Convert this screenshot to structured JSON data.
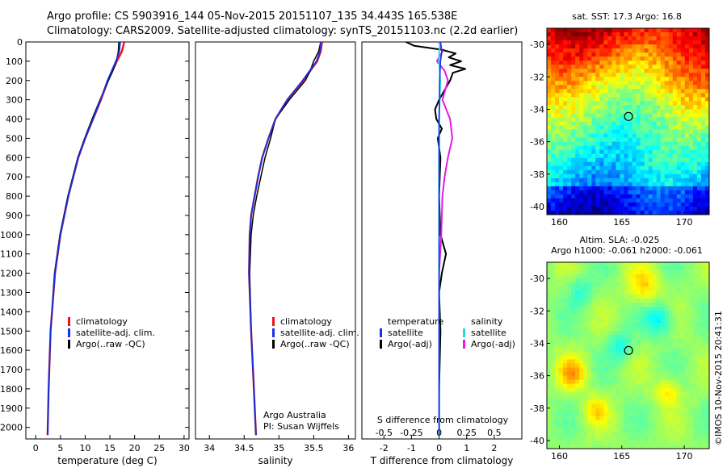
{
  "title_line1": "Argo profile: CS 5903916_144 05-Nov-2015 20151107_135 34.443S 165.538E",
  "title_line2": "Climatology: CARS2009. Satellite-adjusted climatology: synTS_20151103.nc (2.2d earlier)",
  "credit": "Argo Australia",
  "pi": "PI: Susan Wijffels",
  "stamp": "©IMOS 10-Nov-2015 20:41:31",
  "colors": {
    "climatology": "#e8141e",
    "satellite": "#1432e6",
    "argo": "#000000",
    "salinity_sat": "#19e0e0",
    "salinity_argo": "#e619e6"
  },
  "chart_data": [
    {
      "type": "line",
      "id": "temperature",
      "xlabel": "temperature (deg C)",
      "ylabel": "",
      "xlim": [
        -2,
        31
      ],
      "ylim": [
        2060,
        0
      ],
      "xticks": [
        "0",
        "5",
        "10",
        "15",
        "20",
        "25",
        "30"
      ],
      "yticks": [
        "0",
        "100",
        "200",
        "300",
        "400",
        "500",
        "600",
        "700",
        "800",
        "900",
        "1000",
        "1100",
        "1200",
        "1300",
        "1400",
        "1500",
        "1600",
        "1700",
        "1800",
        "1900",
        "2000"
      ],
      "legend": [
        "climatology",
        "satellite-adj. clim.",
        "Argo(..raw -QC)"
      ],
      "series": [
        {
          "name": "climatology",
          "depth": [
            0,
            50,
            100,
            200,
            300,
            400,
            500,
            600,
            800,
            1000,
            1200,
            1500,
            1800,
            2040
          ],
          "values": [
            17.9,
            17.4,
            16.4,
            14.6,
            13.2,
            11.6,
            10.0,
            8.6,
            6.6,
            5.0,
            3.9,
            3.0,
            2.6,
            2.4
          ]
        },
        {
          "name": "satellite-adj. clim.",
          "depth": [
            0,
            50,
            100,
            200,
            300,
            400,
            500,
            600,
            800,
            1000,
            1200,
            1500,
            1800,
            2040
          ],
          "values": [
            17.1,
            16.9,
            16.2,
            14.5,
            13.1,
            11.6,
            10.0,
            8.6,
            6.6,
            5.0,
            3.9,
            3.0,
            2.6,
            2.4
          ]
        },
        {
          "name": "Argo(..raw -QC)",
          "depth": [
            0,
            50,
            100,
            150,
            200,
            300,
            400,
            500,
            600,
            800,
            1000,
            1200,
            1500,
            1800,
            2040
          ],
          "values": [
            16.8,
            16.7,
            16.3,
            15.6,
            14.7,
            13.0,
            11.4,
            9.9,
            8.5,
            6.5,
            4.9,
            3.8,
            3.0,
            2.6,
            2.4
          ]
        }
      ]
    },
    {
      "type": "line",
      "id": "salinity",
      "xlabel": "salinity",
      "xlim": [
        33.8,
        36.1
      ],
      "ylim": [
        2060,
        0
      ],
      "xticks": [
        "34",
        "34.5",
        "35",
        "35.5",
        "36"
      ],
      "legend": [
        "climatology",
        "satellite-adj. clim.",
        "Argo(..raw -QC)"
      ],
      "series": [
        {
          "name": "climatology",
          "depth": [
            0,
            50,
            100,
            200,
            300,
            400,
            500,
            600,
            700,
            800,
            900,
            1000,
            1200,
            1500,
            1800,
            2040
          ],
          "values": [
            35.62,
            35.6,
            35.55,
            35.35,
            35.12,
            34.95,
            34.85,
            34.76,
            34.7,
            34.65,
            34.6,
            34.58,
            34.57,
            34.6,
            34.64,
            34.67
          ]
        },
        {
          "name": "satellite-adj. clim.",
          "depth": [
            0,
            50,
            100,
            200,
            300,
            400,
            500,
            600,
            700,
            800,
            900,
            1000,
            1200,
            1500,
            1800,
            2040
          ],
          "values": [
            35.6,
            35.59,
            35.54,
            35.34,
            35.12,
            34.95,
            34.85,
            34.76,
            34.7,
            34.65,
            34.6,
            34.58,
            34.57,
            34.6,
            34.64,
            34.67
          ]
        },
        {
          "name": "Argo(..raw -QC)",
          "depth": [
            0,
            50,
            100,
            150,
            200,
            300,
            400,
            500,
            600,
            700,
            800,
            900,
            1000,
            1200,
            1500,
            1800,
            2040
          ],
          "values": [
            35.6,
            35.57,
            35.5,
            35.45,
            35.38,
            35.15,
            34.95,
            34.88,
            34.8,
            34.74,
            34.68,
            34.63,
            34.6,
            34.58,
            34.6,
            34.64,
            34.67
          ]
        }
      ]
    },
    {
      "type": "line",
      "id": "difference",
      "xlabel": "T difference from climatology",
      "xlabel_top": "S difference from climatology",
      "xlim": [
        -2.8,
        3.0
      ],
      "ylim": [
        2060,
        0
      ],
      "xticks": [
        "-2",
        "-1",
        "0",
        "1",
        "2"
      ],
      "xticks_top": [
        "-0.5",
        "-0.25",
        "0",
        "0.25",
        "0.5"
      ],
      "legend_titles": [
        "temperature",
        "salinity"
      ],
      "legend": [
        "satellite",
        "Argo(-adj)",
        "satellite",
        "Argo(-adj)"
      ],
      "series": [
        {
          "name": "T satellite",
          "depth": [
            0,
            50,
            100,
            200,
            400,
            600,
            1000,
            1500,
            2040
          ],
          "values": [
            0.05,
            0.1,
            0.05,
            0.02,
            0.0,
            0.0,
            0.0,
            0.0,
            0.0
          ]
        },
        {
          "name": "T Argo(-adj)",
          "depth": [
            0,
            20,
            40,
            60,
            80,
            100,
            120,
            140,
            160,
            200,
            250,
            300,
            350,
            400,
            450,
            500,
            600,
            800,
            1000,
            1100,
            1200,
            1300,
            1500,
            1800,
            2040
          ],
          "values": [
            -1.2,
            -0.9,
            0.1,
            0.6,
            0.35,
            0.8,
            0.4,
            0.95,
            0.5,
            0.4,
            0.2,
            0.0,
            -0.15,
            -0.1,
            0.1,
            -0.05,
            0.05,
            0.0,
            0.05,
            0.25,
            0.1,
            0.0,
            0.05,
            0.0,
            0.0
          ]
        },
        {
          "name": "S satellite",
          "depth": [
            0,
            50,
            100,
            200,
            400,
            600,
            1000,
            1500,
            2040
          ],
          "values": [
            0.01,
            0.0,
            0.0,
            0.01,
            0.0,
            0.0,
            0.0,
            0.0,
            0.0
          ]
        },
        {
          "name": "S Argo(-adj)",
          "depth": [
            0,
            50,
            100,
            150,
            200,
            300,
            400,
            500,
            600,
            700,
            800,
            1000,
            1200,
            1500,
            1800,
            2040
          ],
          "values": [
            0.0,
            0.03,
            -0.02,
            0.05,
            0.08,
            0.03,
            0.1,
            0.12,
            0.08,
            0.05,
            0.03,
            0.02,
            0.0,
            0.0,
            0.0,
            0.0
          ]
        }
      ]
    },
    {
      "type": "heatmap",
      "id": "sst_map",
      "title": "sat. SST: 17.3 Argo: 16.8",
      "xlim": [
        159,
        172
      ],
      "ylim": [
        -40.5,
        -29
      ],
      "xticks": [
        "160",
        "165",
        "170"
      ],
      "yticks": [
        "-30",
        "-32",
        "-34",
        "-36",
        "-38",
        "-40"
      ],
      "marker": {
        "lon": 165.538,
        "lat": -34.443
      }
    },
    {
      "type": "heatmap",
      "id": "sla_map",
      "title": "Altim. SLA: -0.025",
      "subtitle": "Argo h1000: -0.061 h2000: -0.061",
      "xlim": [
        159,
        172
      ],
      "ylim": [
        -40.5,
        -29
      ],
      "xticks": [
        "160",
        "165",
        "170"
      ],
      "yticks": [
        "-30",
        "-32",
        "-34",
        "-36",
        "-38",
        "-40"
      ],
      "marker": {
        "lon": 165.538,
        "lat": -34.443
      }
    }
  ]
}
